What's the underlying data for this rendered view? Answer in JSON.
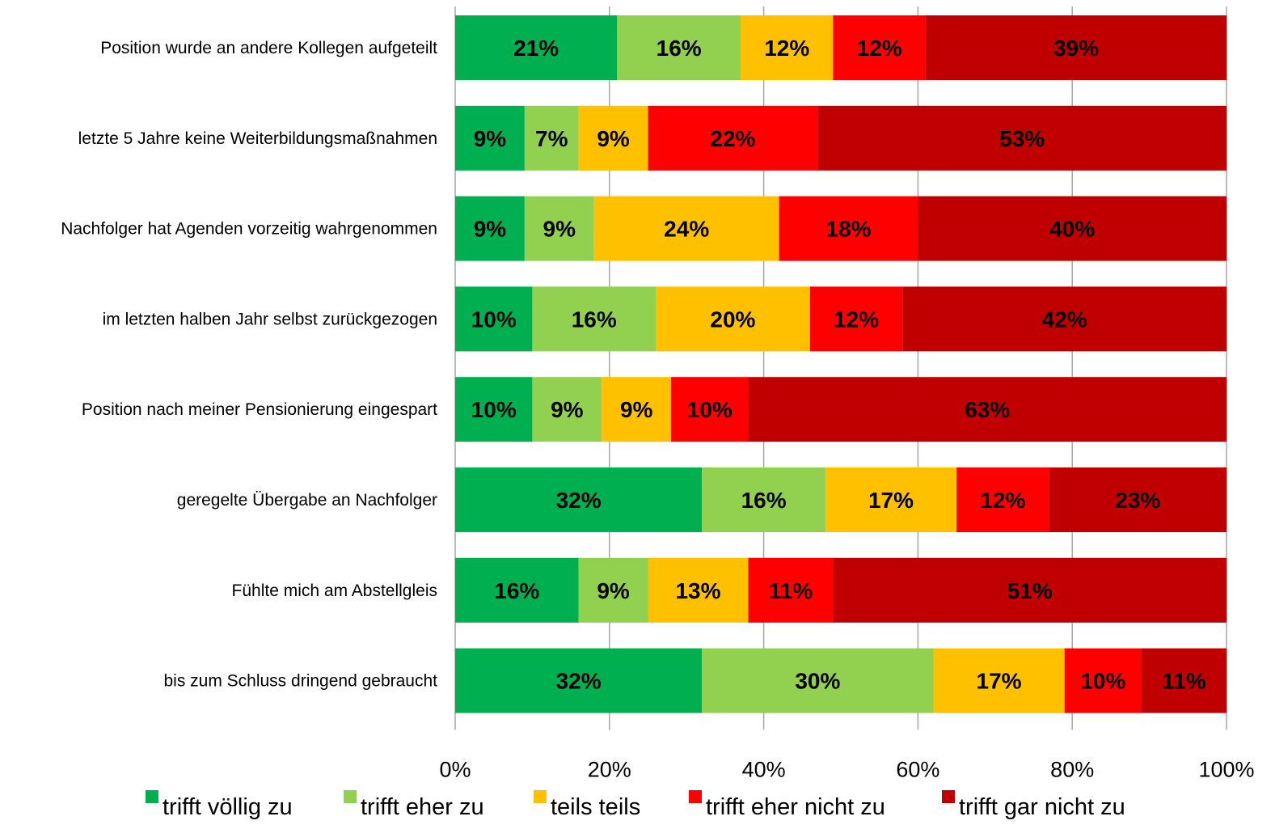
{
  "chart_data": {
    "type": "bar",
    "orientation": "horizontal",
    "stacked": "100%",
    "title": "",
    "xlabel": "",
    "ylabel": "",
    "xlim": [
      0,
      100
    ],
    "x_ticks": [
      "0%",
      "20%",
      "40%",
      "60%",
      "80%",
      "100%"
    ],
    "grid": true,
    "legend_position": "bottom",
    "categories": [
      "Position wurde an andere Kollegen aufgeteilt",
      "letzte 5 Jahre keine Weiterbildungsmaßnahmen",
      "Nachfolger hat Agenden vorzeitig wahrgenommen",
      "im letzten halben Jahr selbst zurückgezogen",
      "Position nach meiner Pensionierung eingespart",
      "geregelte Übergabe an Nachfolger",
      "Fühlte mich am Abstellgleis",
      "bis zum Schluss dringend gebraucht"
    ],
    "series": [
      {
        "name": "trifft völlig zu",
        "color": "#00b050",
        "values": [
          21,
          9,
          9,
          10,
          10,
          32,
          16,
          32
        ],
        "labels": [
          "21%",
          "9%",
          "9%",
          "10%",
          "10%",
          "32%",
          "16%",
          "32%"
        ]
      },
      {
        "name": "trifft eher zu",
        "color": "#92d050",
        "values": [
          16,
          7,
          9,
          16,
          9,
          16,
          9,
          30
        ],
        "labels": [
          "16%",
          "7%",
          "9%",
          "16%",
          "9%",
          "16%",
          "9%",
          "30%"
        ]
      },
      {
        "name": "teils teils",
        "color": "#ffc000",
        "values": [
          12,
          9,
          24,
          20,
          9,
          17,
          13,
          17
        ],
        "labels": [
          "12%",
          "9%",
          "24%",
          "20%",
          "9%",
          "17%",
          "13%",
          "17%"
        ]
      },
      {
        "name": "trifft eher nicht zu",
        "color": "#ff0000",
        "values": [
          12,
          22,
          18,
          12,
          10,
          12,
          11,
          10
        ],
        "labels": [
          "12%",
          "22%",
          "18%",
          "12%",
          "10%",
          "12%",
          "11%",
          "10%"
        ]
      },
      {
        "name": "trifft gar nicht zu",
        "color": "#c00000",
        "values": [
          39,
          53,
          40,
          42,
          63,
          23,
          51,
          11
        ],
        "labels": [
          "39%",
          "53%",
          "40%",
          "42%",
          "63%",
          "23%",
          "51%",
          "11%"
        ]
      }
    ]
  }
}
